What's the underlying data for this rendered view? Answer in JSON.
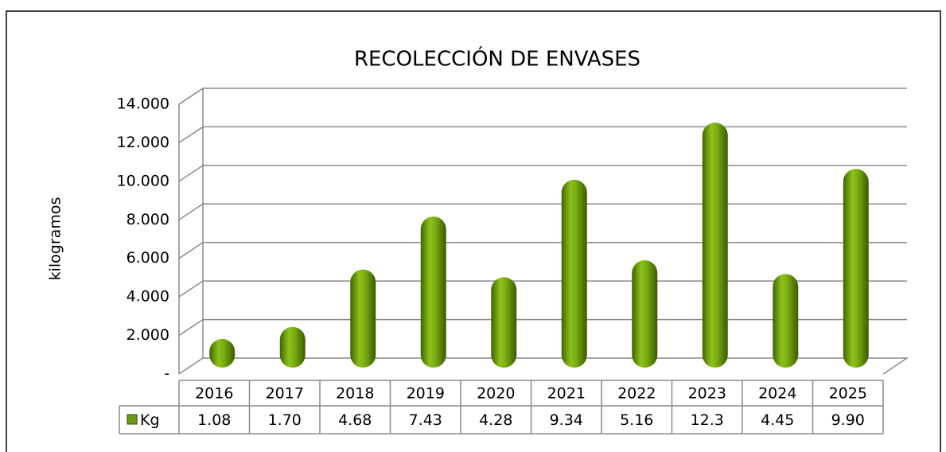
{
  "chart_data": {
    "type": "bar",
    "title": "RECOLECCIÓN DE ENVASES",
    "y_label": "kilogramos",
    "categories": [
      "2016",
      "2017",
      "2018",
      "2019",
      "2020",
      "2021",
      "2022",
      "2023",
      "2024",
      "2025"
    ],
    "series": [
      {
        "name": "Kg",
        "color": "#6a9a10",
        "values": [
          1080,
          1700,
          4680,
          7430,
          4280,
          9340,
          5160,
          12300,
          4450,
          9900
        ],
        "value_labels": [
          "1.08",
          "1.70",
          "4.68",
          "7.43",
          "4.28",
          "9.34",
          "5.16",
          "12.3",
          "4.45",
          "9.90"
        ]
      }
    ],
    "ylim": [
      0,
      14000
    ],
    "yticks": [
      {
        "value": 0,
        "label": "-"
      },
      {
        "value": 2000,
        "label": "2.000"
      },
      {
        "value": 4000,
        "label": "4.000"
      },
      {
        "value": 6000,
        "label": "6.000"
      },
      {
        "value": 8000,
        "label": "8.000"
      },
      {
        "value": 10000,
        "label": "10.000"
      },
      {
        "value": 12000,
        "label": "12.000"
      },
      {
        "value": 14000,
        "label": "14.000"
      }
    ],
    "grid": true
  }
}
